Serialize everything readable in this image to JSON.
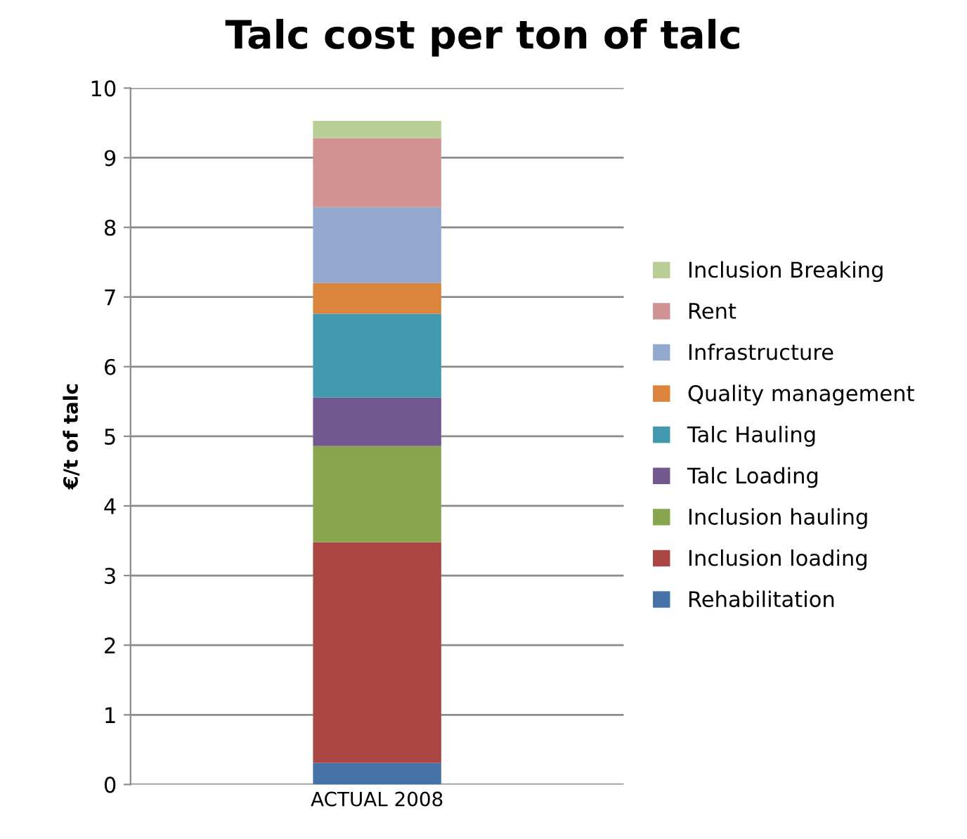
{
  "chart_data": {
    "type": "bar",
    "stacked": true,
    "title": "Talc cost per ton of talc",
    "ylabel": "€/t of talc",
    "categories": [
      "ACTUAL 2008"
    ],
    "series": [
      {
        "name": "Rehabilitation",
        "color": "#4572a7",
        "values": [
          0.31
        ]
      },
      {
        "name": "Inclusion loading",
        "color": "#aa4643",
        "values": [
          3.17
        ]
      },
      {
        "name": "Inclusion hauling",
        "color": "#89a54e",
        "values": [
          1.38
        ]
      },
      {
        "name": "Talc Loading",
        "color": "#71588f",
        "values": [
          0.7
        ]
      },
      {
        "name": "Talc Hauling",
        "color": "#4198af",
        "values": [
          1.2
        ]
      },
      {
        "name": "Quality management",
        "color": "#db843d",
        "values": [
          0.44
        ]
      },
      {
        "name": "Infrastructure",
        "color": "#93a9cf",
        "values": [
          1.09
        ]
      },
      {
        "name": "Rent",
        "color": "#d19392",
        "values": [
          0.99
        ]
      },
      {
        "name": "Inclusion Breaking",
        "color": "#b9cd96",
        "values": [
          0.25
        ]
      }
    ],
    "ylim": [
      0,
      10
    ],
    "yticks": [
      0,
      1,
      2,
      3,
      4,
      5,
      6,
      7,
      8,
      9,
      10
    ],
    "grid": "y",
    "legend": "right"
  }
}
